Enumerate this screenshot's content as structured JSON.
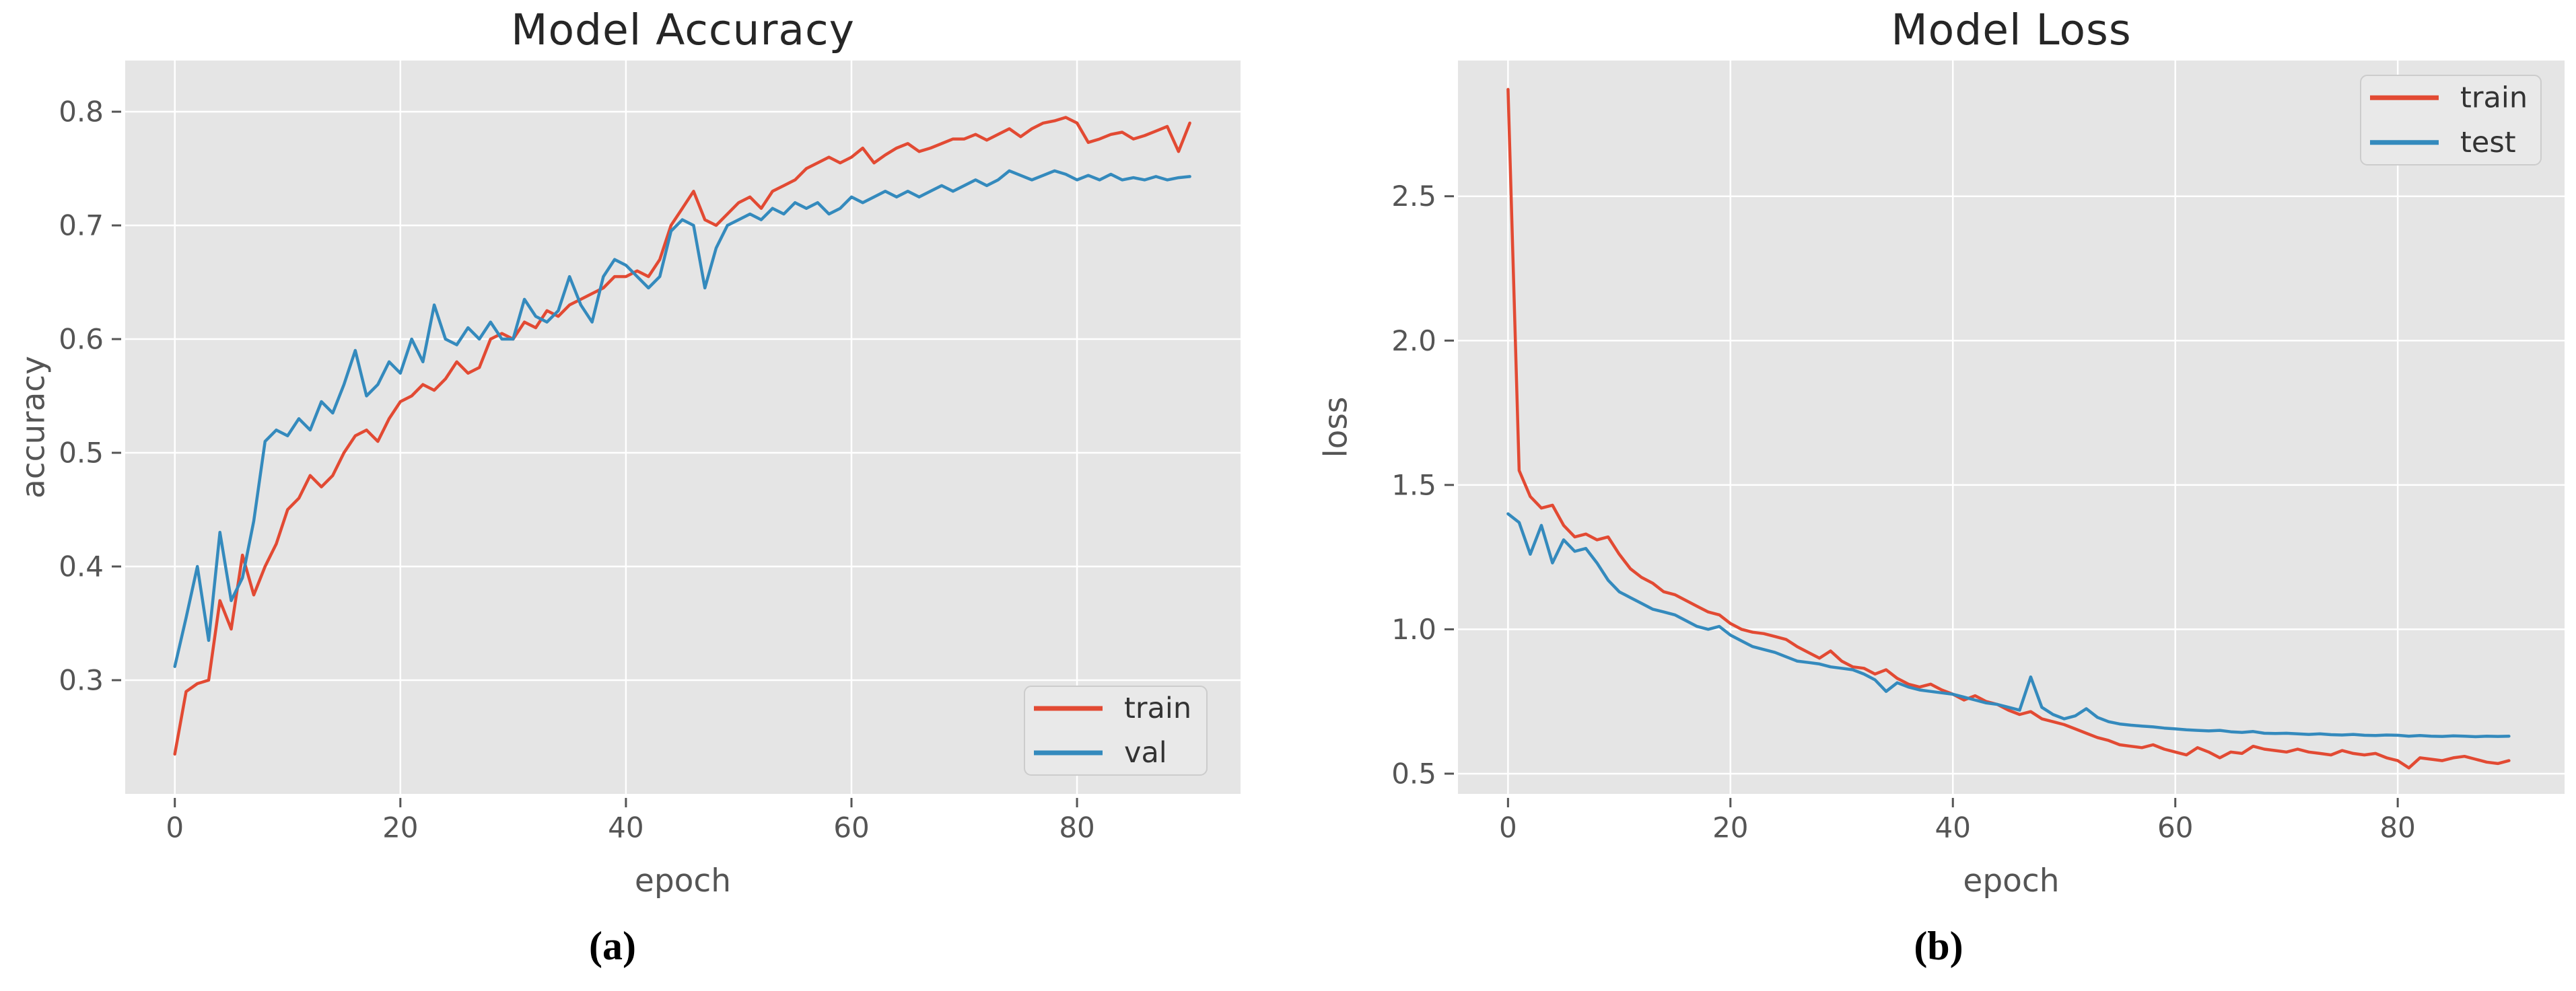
{
  "figure": {
    "captions": {
      "a": "(a)",
      "b": "(b)"
    }
  },
  "style": {
    "plot_bg": "#E5E5E5",
    "grid_color": "#FFFFFF",
    "tick_color": "#555555",
    "tick_label_color": "#555555",
    "title_color": "#262626",
    "legend_bg": "#E9E9E9",
    "legend_border": "#CCCCCC",
    "legend_text": "#333333",
    "red": "#E24A33",
    "blue": "#348ABD"
  },
  "chart_data": [
    {
      "id": "accuracy",
      "type": "line",
      "title": "Model Accuracy",
      "xlabel": "epoch",
      "ylabel": "accuracy",
      "xlim": [
        -4.4,
        94.5
      ],
      "ylim": [
        0.2,
        0.845
      ],
      "xticks": [
        0,
        20,
        40,
        60,
        80
      ],
      "yticks": [
        0.3,
        0.4,
        0.5,
        0.6,
        0.7,
        0.8
      ],
      "grid": true,
      "legend": {
        "position": "lower right",
        "entries": [
          "train",
          "val"
        ]
      },
      "x_start": 0,
      "x_step": 1,
      "series": [
        {
          "name": "train",
          "color": "#E24A33",
          "values": [
            0.235,
            0.29,
            0.297,
            0.3,
            0.37,
            0.345,
            0.41,
            0.375,
            0.4,
            0.42,
            0.45,
            0.46,
            0.48,
            0.47,
            0.48,
            0.5,
            0.515,
            0.52,
            0.51,
            0.53,
            0.545,
            0.55,
            0.56,
            0.555,
            0.565,
            0.58,
            0.57,
            0.575,
            0.6,
            0.605,
            0.6,
            0.615,
            0.61,
            0.625,
            0.62,
            0.63,
            0.635,
            0.64,
            0.645,
            0.655,
            0.655,
            0.66,
            0.655,
            0.67,
            0.7,
            0.715,
            0.73,
            0.705,
            0.7,
            0.71,
            0.72,
            0.725,
            0.715,
            0.73,
            0.735,
            0.74,
            0.75,
            0.755,
            0.76,
            0.755,
            0.76,
            0.768,
            0.755,
            0.762,
            0.768,
            0.772,
            0.765,
            0.768,
            0.772,
            0.776,
            0.776,
            0.78,
            0.775,
            0.78,
            0.785,
            0.778,
            0.785,
            0.79,
            0.792,
            0.795,
            0.79,
            0.773,
            0.776,
            0.78,
            0.782,
            0.776,
            0.779,
            0.783,
            0.787,
            0.765,
            0.79
          ]
        },
        {
          "name": "val",
          "color": "#348ABD",
          "values": [
            0.312,
            0.355,
            0.4,
            0.335,
            0.43,
            0.37,
            0.39,
            0.44,
            0.51,
            0.52,
            0.515,
            0.53,
            0.52,
            0.545,
            0.535,
            0.56,
            0.59,
            0.55,
            0.56,
            0.58,
            0.57,
            0.6,
            0.58,
            0.63,
            0.6,
            0.595,
            0.61,
            0.6,
            0.615,
            0.6,
            0.6,
            0.635,
            0.62,
            0.615,
            0.625,
            0.655,
            0.63,
            0.615,
            0.655,
            0.67,
            0.665,
            0.655,
            0.645,
            0.655,
            0.695,
            0.705,
            0.7,
            0.645,
            0.68,
            0.7,
            0.705,
            0.71,
            0.705,
            0.715,
            0.71,
            0.72,
            0.715,
            0.72,
            0.71,
            0.715,
            0.725,
            0.72,
            0.725,
            0.73,
            0.725,
            0.73,
            0.725,
            0.73,
            0.735,
            0.73,
            0.735,
            0.74,
            0.735,
            0.74,
            0.748,
            0.744,
            0.74,
            0.744,
            0.748,
            0.745,
            0.74,
            0.744,
            0.74,
            0.745,
            0.74,
            0.742,
            0.74,
            0.743,
            0.74,
            0.742,
            0.743
          ]
        }
      ]
    },
    {
      "id": "loss",
      "type": "line",
      "title": "Model Loss",
      "xlabel": "epoch",
      "ylabel": "loss",
      "xlim": [
        -4.5,
        95.0
      ],
      "ylim": [
        0.43,
        2.97
      ],
      "xticks": [
        0,
        20,
        40,
        60,
        80
      ],
      "yticks": [
        0.5,
        1.0,
        1.5,
        2.0,
        2.5
      ],
      "grid": true,
      "legend": {
        "position": "upper right",
        "entries": [
          "train",
          "test"
        ]
      },
      "x_start": 0,
      "x_step": 1,
      "series": [
        {
          "name": "train",
          "color": "#E24A33",
          "values": [
            2.87,
            1.55,
            1.46,
            1.42,
            1.43,
            1.36,
            1.32,
            1.33,
            1.31,
            1.32,
            1.26,
            1.21,
            1.18,
            1.16,
            1.13,
            1.12,
            1.1,
            1.08,
            1.06,
            1.05,
            1.02,
            1.0,
            0.99,
            0.985,
            0.975,
            0.965,
            0.94,
            0.92,
            0.9,
            0.925,
            0.89,
            0.87,
            0.865,
            0.845,
            0.86,
            0.83,
            0.81,
            0.8,
            0.81,
            0.79,
            0.775,
            0.755,
            0.77,
            0.75,
            0.74,
            0.72,
            0.705,
            0.715,
            0.69,
            0.68,
            0.67,
            0.655,
            0.64,
            0.625,
            0.615,
            0.6,
            0.595,
            0.59,
            0.6,
            0.585,
            0.575,
            0.565,
            0.59,
            0.575,
            0.555,
            0.575,
            0.57,
            0.595,
            0.585,
            0.58,
            0.575,
            0.585,
            0.575,
            0.57,
            0.565,
            0.58,
            0.57,
            0.565,
            0.57,
            0.555,
            0.545,
            0.52,
            0.555,
            0.55,
            0.545,
            0.555,
            0.56,
            0.55,
            0.54,
            0.535,
            0.545
          ]
        },
        {
          "name": "test",
          "color": "#348ABD",
          "values": [
            1.4,
            1.37,
            1.26,
            1.36,
            1.23,
            1.31,
            1.27,
            1.28,
            1.23,
            1.17,
            1.13,
            1.11,
            1.09,
            1.07,
            1.06,
            1.05,
            1.03,
            1.01,
            1.0,
            1.01,
            0.98,
            0.96,
            0.94,
            0.93,
            0.92,
            0.905,
            0.89,
            0.885,
            0.88,
            0.87,
            0.865,
            0.86,
            0.845,
            0.825,
            0.785,
            0.815,
            0.8,
            0.79,
            0.785,
            0.78,
            0.775,
            0.765,
            0.755,
            0.745,
            0.74,
            0.73,
            0.72,
            0.835,
            0.73,
            0.705,
            0.69,
            0.7,
            0.725,
            0.695,
            0.68,
            0.672,
            0.668,
            0.665,
            0.662,
            0.658,
            0.655,
            0.652,
            0.65,
            0.648,
            0.65,
            0.645,
            0.643,
            0.646,
            0.64,
            0.639,
            0.64,
            0.638,
            0.636,
            0.638,
            0.635,
            0.634,
            0.636,
            0.633,
            0.632,
            0.634,
            0.633,
            0.63,
            0.632,
            0.63,
            0.629,
            0.631,
            0.63,
            0.628,
            0.63,
            0.629,
            0.63
          ]
        }
      ]
    }
  ]
}
